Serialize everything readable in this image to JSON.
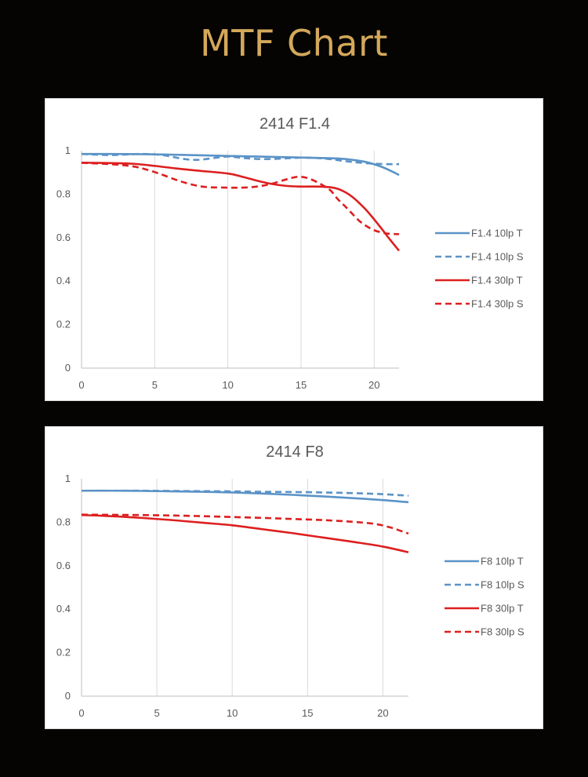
{
  "page": {
    "title": "MTF Chart",
    "title_color": "#d4a85a",
    "background": "#050403"
  },
  "chart_data": [
    {
      "type": "line",
      "title": "2414 F1.4",
      "xlabel": "",
      "ylabel": "",
      "xlim": [
        0,
        21.7
      ],
      "ylim": [
        0,
        1
      ],
      "xticks": [
        "0",
        "5",
        "10",
        "15",
        "20"
      ],
      "yticks": [
        "0",
        "0.2",
        "0.4",
        "0.6",
        "0.8",
        "1"
      ],
      "grid": "vertical",
      "legend_position": "right",
      "series": [
        {
          "name": "F1.4 10lp T",
          "color": "#5b93c7",
          "dash": "solid",
          "points": [
            [
              0,
              0.985
            ],
            [
              2,
              0.985
            ],
            [
              4,
              0.984
            ],
            [
              6,
              0.982
            ],
            [
              8,
              0.979
            ],
            [
              10,
              0.976
            ],
            [
              12,
              0.973
            ],
            [
              14,
              0.97
            ],
            [
              16,
              0.967
            ],
            [
              17.5,
              0.964
            ],
            [
              18.5,
              0.958
            ],
            [
              19.5,
              0.947
            ],
            [
              20.5,
              0.926
            ],
            [
              21.3,
              0.902
            ],
            [
              21.7,
              0.888
            ]
          ]
        },
        {
          "name": "F1.4 10lp S",
          "color": "#5b93c7",
          "dash": "dashed",
          "points": [
            [
              0,
              0.985
            ],
            [
              2,
              0.98
            ],
            [
              4,
              0.985
            ],
            [
              5.5,
              0.98
            ],
            [
              7,
              0.962
            ],
            [
              8,
              0.958
            ],
            [
              9,
              0.966
            ],
            [
              10,
              0.973
            ],
            [
              11,
              0.967
            ],
            [
              12,
              0.962
            ],
            [
              13,
              0.962
            ],
            [
              14,
              0.965
            ],
            [
              15,
              0.968
            ],
            [
              16,
              0.967
            ],
            [
              17,
              0.961
            ],
            [
              18,
              0.952
            ],
            [
              19,
              0.945
            ],
            [
              20,
              0.94
            ],
            [
              21,
              0.938
            ],
            [
              21.7,
              0.938
            ]
          ]
        },
        {
          "name": "F1.4 30lp T",
          "color": "#dd1f1f",
          "dash": "solid",
          "points": [
            [
              0,
              0.945
            ],
            [
              2,
              0.943
            ],
            [
              3.5,
              0.94
            ],
            [
              5,
              0.93
            ],
            [
              6.5,
              0.918
            ],
            [
              8,
              0.908
            ],
            [
              10,
              0.895
            ],
            [
              11,
              0.88
            ],
            [
              12,
              0.862
            ],
            [
              13,
              0.847
            ],
            [
              14,
              0.838
            ],
            [
              15,
              0.835
            ],
            [
              16,
              0.835
            ],
            [
              17,
              0.832
            ],
            [
              17.5,
              0.825
            ],
            [
              18,
              0.81
            ],
            [
              18.5,
              0.788
            ],
            [
              19,
              0.758
            ],
            [
              19.5,
              0.724
            ],
            [
              20,
              0.684
            ],
            [
              20.5,
              0.642
            ],
            [
              21,
              0.598
            ],
            [
              21.5,
              0.556
            ],
            [
              21.7,
              0.54
            ]
          ]
        },
        {
          "name": "F1.4 30lp S",
          "color": "#dd1f1f",
          "dash": "dashed",
          "points": [
            [
              0,
              0.944
            ],
            [
              2,
              0.938
            ],
            [
              3.5,
              0.928
            ],
            [
              4.5,
              0.912
            ],
            [
              5.5,
              0.89
            ],
            [
              6.5,
              0.865
            ],
            [
              7.5,
              0.845
            ],
            [
              8.5,
              0.833
            ],
            [
              10,
              0.83
            ],
            [
              11,
              0.83
            ],
            [
              12,
              0.835
            ],
            [
              13,
              0.848
            ],
            [
              14,
              0.868
            ],
            [
              14.8,
              0.88
            ],
            [
              15.5,
              0.873
            ],
            [
              16.3,
              0.848
            ],
            [
              17,
              0.818
            ],
            [
              17.5,
              0.778
            ],
            [
              18,
              0.745
            ],
            [
              18.5,
              0.71
            ],
            [
              19,
              0.676
            ],
            [
              19.5,
              0.652
            ],
            [
              20,
              0.634
            ],
            [
              20.5,
              0.624
            ],
            [
              21,
              0.618
            ],
            [
              21.7,
              0.616
            ]
          ]
        }
      ]
    },
    {
      "type": "line",
      "title": "2414 F8",
      "xlabel": "",
      "ylabel": "",
      "xlim": [
        0,
        21.7
      ],
      "ylim": [
        0,
        1
      ],
      "xticks": [
        "0",
        "5",
        "10",
        "15",
        "20"
      ],
      "yticks": [
        "0",
        "0.2",
        "0.4",
        "0.6",
        "0.8",
        "1"
      ],
      "grid": "vertical",
      "legend_position": "right",
      "series": [
        {
          "name": "F8 10lp T",
          "color": "#5b93c7",
          "dash": "solid",
          "points": [
            [
              0,
              0.945
            ],
            [
              2,
              0.945
            ],
            [
              4,
              0.944
            ],
            [
              6,
              0.942
            ],
            [
              8,
              0.94
            ],
            [
              10,
              0.937
            ],
            [
              12,
              0.932
            ],
            [
              14,
              0.926
            ],
            [
              16,
              0.919
            ],
            [
              18,
              0.911
            ],
            [
              20,
              0.902
            ],
            [
              21.7,
              0.892
            ]
          ]
        },
        {
          "name": "F8 10lp S",
          "color": "#5b93c7",
          "dash": "dashed",
          "points": [
            [
              0,
              0.945
            ],
            [
              2,
              0.945
            ],
            [
              4,
              0.945
            ],
            [
              6,
              0.944
            ],
            [
              8,
              0.943
            ],
            [
              10,
              0.942
            ],
            [
              12,
              0.94
            ],
            [
              14,
              0.939
            ],
            [
              16,
              0.937
            ],
            [
              18,
              0.934
            ],
            [
              20,
              0.929
            ],
            [
              21.7,
              0.922
            ]
          ]
        },
        {
          "name": "F8 30lp T",
          "color": "#dd1f1f",
          "dash": "solid",
          "points": [
            [
              0,
              0.833
            ],
            [
              2,
              0.828
            ],
            [
              4,
              0.82
            ],
            [
              6,
              0.81
            ],
            [
              8,
              0.798
            ],
            [
              10,
              0.786
            ],
            [
              12,
              0.768
            ],
            [
              14,
              0.75
            ],
            [
              16,
              0.73
            ],
            [
              18,
              0.71
            ],
            [
              20,
              0.688
            ],
            [
              21.7,
              0.662
            ]
          ]
        },
        {
          "name": "F8 30lp S",
          "color": "#dd1f1f",
          "dash": "dashed",
          "points": [
            [
              0,
              0.835
            ],
            [
              2,
              0.834
            ],
            [
              4,
              0.833
            ],
            [
              6,
              0.831
            ],
            [
              8,
              0.828
            ],
            [
              10,
              0.824
            ],
            [
              12,
              0.82
            ],
            [
              14,
              0.815
            ],
            [
              16,
              0.81
            ],
            [
              18,
              0.802
            ],
            [
              19.5,
              0.792
            ],
            [
              20.5,
              0.776
            ],
            [
              21.2,
              0.76
            ],
            [
              21.7,
              0.748
            ]
          ]
        }
      ]
    }
  ]
}
